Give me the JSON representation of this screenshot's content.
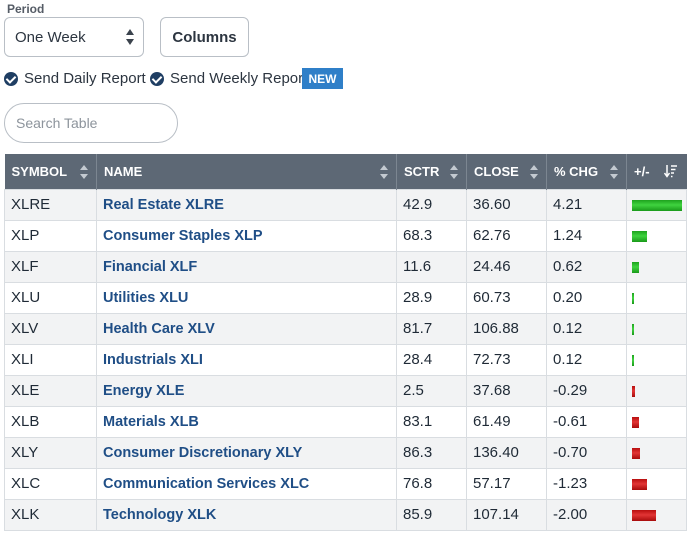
{
  "period": {
    "label": "Period",
    "selected": "One Week"
  },
  "columns_button": "Columns",
  "reports": {
    "daily": "Send Daily Report",
    "weekly": "Send Weekly Report",
    "new_badge": "NEW"
  },
  "search": {
    "placeholder": "Search Table"
  },
  "table": {
    "headers": {
      "symbol": "SYMBOL",
      "name": "NAME",
      "sctr": "SCTR",
      "close": "CLOSE",
      "pct_chg": "% CHG",
      "plus_minus": "+/-"
    },
    "colors": {
      "positive": "#2bbd2b",
      "negative": "#d21f1f",
      "header_bg": "#5d6875",
      "link": "#1f4e86"
    },
    "rows": [
      {
        "symbol": "XLRE",
        "name": "Real Estate XLRE",
        "sctr": "42.9",
        "close": "36.60",
        "chg": "4.21",
        "chg_value": 4.21
      },
      {
        "symbol": "XLP",
        "name": "Consumer Staples XLP",
        "sctr": "68.3",
        "close": "62.76",
        "chg": "1.24",
        "chg_value": 1.24
      },
      {
        "symbol": "XLF",
        "name": "Financial XLF",
        "sctr": "11.6",
        "close": "24.46",
        "chg": "0.62",
        "chg_value": 0.62
      },
      {
        "symbol": "XLU",
        "name": "Utilities XLU",
        "sctr": "28.9",
        "close": "60.73",
        "chg": "0.20",
        "chg_value": 0.2
      },
      {
        "symbol": "XLV",
        "name": "Health Care XLV",
        "sctr": "81.7",
        "close": "106.88",
        "chg": "0.12",
        "chg_value": 0.12
      },
      {
        "symbol": "XLI",
        "name": "Industrials XLI",
        "sctr": "28.4",
        "close": "72.73",
        "chg": "0.12",
        "chg_value": 0.12
      },
      {
        "symbol": "XLE",
        "name": "Energy XLE",
        "sctr": "2.5",
        "close": "37.68",
        "chg": "-0.29",
        "chg_value": -0.29
      },
      {
        "symbol": "XLB",
        "name": "Materials XLB",
        "sctr": "83.1",
        "close": "61.49",
        "chg": "-0.61",
        "chg_value": -0.61
      },
      {
        "symbol": "XLY",
        "name": "Consumer Discretionary XLY",
        "sctr": "86.3",
        "close": "136.40",
        "chg": "-0.70",
        "chg_value": -0.7
      },
      {
        "symbol": "XLC",
        "name": "Communication Services XLC",
        "sctr": "76.8",
        "close": "57.17",
        "chg": "-1.23",
        "chg_value": -1.23
      },
      {
        "symbol": "XLK",
        "name": "Technology XLK",
        "sctr": "85.9",
        "close": "107.14",
        "chg": "-2.00",
        "chg_value": -2.0
      }
    ]
  }
}
